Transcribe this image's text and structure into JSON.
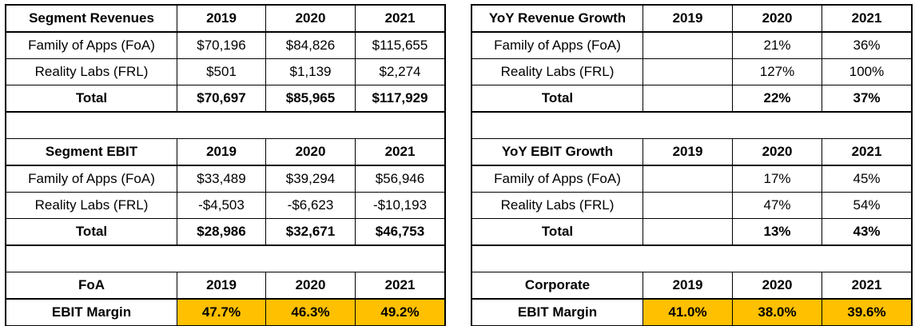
{
  "left": {
    "revenues": {
      "header": [
        "Segment Revenues",
        "2019",
        "2020",
        "2021"
      ],
      "rows": [
        [
          "Family of Apps (FoA)",
          "$70,196",
          "$84,826",
          "$115,655"
        ],
        [
          "Reality Labs (FRL)",
          "$501",
          "$1,139",
          "$2,274"
        ]
      ],
      "total": [
        "Total",
        "$70,697",
        "$85,965",
        "$117,929"
      ]
    },
    "ebit": {
      "header": [
        "Segment EBIT",
        "2019",
        "2020",
        "2021"
      ],
      "rows": [
        [
          "Family of Apps (FoA)",
          "$33,489",
          "$39,294",
          "$56,946"
        ],
        [
          "Reality Labs (FRL)",
          "-$4,503",
          "-$6,623",
          "-$10,193"
        ]
      ],
      "total": [
        "Total",
        "$28,986",
        "$32,671",
        "$46,753"
      ]
    },
    "margin": {
      "header": [
        "FoA",
        "2019",
        "2020",
        "2021"
      ],
      "row": [
        "EBIT Margin",
        "47.7%",
        "46.3%",
        "49.2%"
      ]
    }
  },
  "right": {
    "revenues": {
      "header": [
        "YoY Revenue Growth",
        "2019",
        "2020",
        "2021"
      ],
      "rows": [
        [
          "Family of Apps (FoA)",
          "",
          "21%",
          "36%"
        ],
        [
          "Reality Labs (FRL)",
          "",
          "127%",
          "100%"
        ]
      ],
      "total": [
        "Total",
        "",
        "22%",
        "37%"
      ]
    },
    "ebit": {
      "header": [
        "YoY EBIT Growth",
        "2019",
        "2020",
        "2021"
      ],
      "rows": [
        [
          "Family of Apps (FoA)",
          "",
          "17%",
          "45%"
        ],
        [
          "Reality Labs (FRL)",
          "",
          "47%",
          "54%"
        ]
      ],
      "total": [
        "Total",
        "",
        "13%",
        "43%"
      ]
    },
    "margin": {
      "header": [
        "Corporate",
        "2019",
        "2020",
        "2021"
      ],
      "row": [
        "EBIT Margin",
        "41.0%",
        "38.0%",
        "39.6%"
      ]
    }
  },
  "colors": {
    "highlight": "#ffc000",
    "border": "#000000"
  }
}
